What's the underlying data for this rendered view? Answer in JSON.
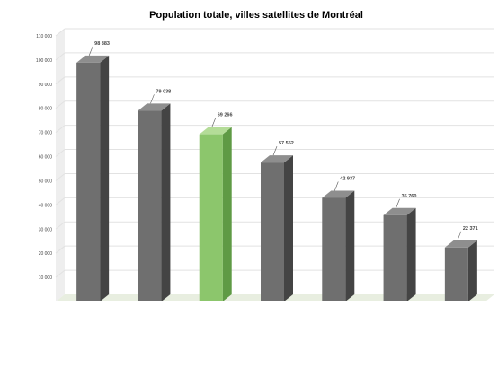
{
  "chart_data": {
    "type": "bar",
    "title": "Population totale, villes satellites de Montréal",
    "xlabel": "",
    "ylabel": "",
    "ylim": [
      0,
      110000
    ],
    "y_ticks": [
      0,
      10000,
      20000,
      30000,
      40000,
      50000,
      60000,
      70000,
      80000,
      90000,
      100000,
      110000
    ],
    "y_tick_labels": [
      "",
      "10 000",
      "20 000",
      "30 000",
      "40 000",
      "50 000",
      "60 000",
      "70 000",
      "80 000",
      "90 000",
      "100 000",
      "110 000"
    ],
    "grid": true,
    "categories": [
      "",
      "",
      "",
      "",
      "",
      "",
      ""
    ],
    "values": [
      98883,
      79038,
      69266,
      57552,
      42937,
      35760,
      22371
    ],
    "data_labels": [
      "98 883",
      "79 038",
      "69 266",
      "57 552",
      "42 937",
      "35 760",
      "22 371"
    ],
    "highlight_index": 2,
    "colors": {
      "bar": "#6f6f6f",
      "bar_side": "#444444",
      "bar_top": "#8e8e8e",
      "highlight": "#8cc66c",
      "highlight_side": "#5f9a45",
      "highlight_top": "#b4dc98",
      "title": "#2e8f6a",
      "grid": "#e2e2e2",
      "floor": "#e8eee0",
      "wall": "#eeeeee",
      "text": "#444444"
    }
  }
}
